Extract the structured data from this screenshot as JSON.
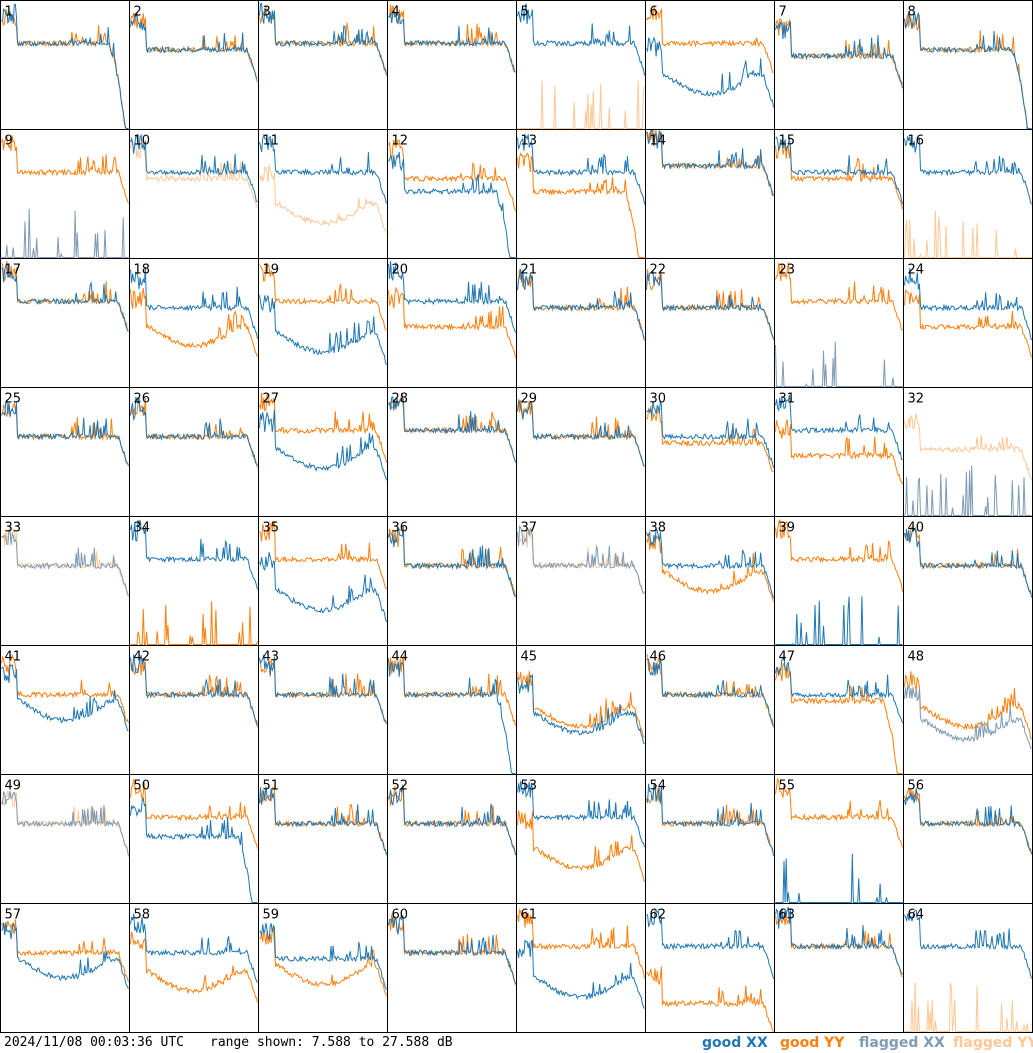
{
  "footer": {
    "timestamp": "2024/11/08 00:03:36 UTC",
    "range_text": "range shown: 7.588 to 27.588 dB"
  },
  "legend": {
    "good_xx": "good XX",
    "good_yy": "good YY",
    "flagged_xx": "flagged XX",
    "flagged_yy": "flagged YY"
  },
  "colors": {
    "good_xx": "#1f77b4",
    "good_yy": "#ff7f0e",
    "flagged_xx": "#7f9bb5",
    "flagged_yy": "#ffc896",
    "border": "#000000",
    "background": "#ffffff"
  },
  "chart_data": {
    "type": "line",
    "layout": "8x8 small multiples",
    "y_range_db": [
      7.588,
      27.588
    ],
    "panels": [
      {
        "label": "1",
        "xx": {
          "level": 21,
          "shape": "dip_right",
          "status": "good"
        },
        "yy": {
          "level": 21,
          "shape": "dip_right",
          "status": "good"
        }
      },
      {
        "label": "2",
        "xx": {
          "level": 20,
          "shape": "flat",
          "status": "good"
        },
        "yy": {
          "level": 20,
          "shape": "flat",
          "status": "good"
        }
      },
      {
        "label": "3",
        "xx": {
          "level": 21,
          "shape": "flat",
          "status": "good"
        },
        "yy": {
          "level": 21,
          "shape": "flat",
          "status": "good"
        }
      },
      {
        "label": "4",
        "xx": {
          "level": 21,
          "shape": "flat",
          "status": "good"
        },
        "yy": {
          "level": 21,
          "shape": "flat",
          "status": "good"
        }
      },
      {
        "label": "5",
        "xx": {
          "level": 21,
          "shape": "noisy_sag",
          "status": "good"
        },
        "yy": {
          "level": null,
          "shape": "spikes_low",
          "status": "flagged"
        }
      },
      {
        "label": "6",
        "xx": {
          "level": 16,
          "shape": "sag",
          "status": "good"
        },
        "yy": {
          "level": 21,
          "shape": "flat",
          "status": "good"
        }
      },
      {
        "label": "7",
        "xx": {
          "level": 19,
          "shape": "flat",
          "status": "good"
        },
        "yy": {
          "level": 19,
          "shape": "flat",
          "status": "good"
        }
      },
      {
        "label": "8",
        "xx": {
          "level": 20,
          "shape": "dip_right",
          "status": "good"
        },
        "yy": {
          "level": 20,
          "shape": "dip_right",
          "status": "good"
        }
      },
      {
        "label": "9",
        "xx": {
          "level": null,
          "shape": "spikes_low",
          "status": "flagged"
        },
        "yy": {
          "level": 21,
          "shape": "flat",
          "status": "good"
        }
      },
      {
        "label": "10",
        "xx": {
          "level": 21,
          "shape": "flat",
          "status": "good"
        },
        "yy": {
          "level": 20,
          "shape": "flat",
          "status": "flagged"
        }
      },
      {
        "label": "11",
        "xx": {
          "level": 21,
          "shape": "flat",
          "status": "good"
        },
        "yy": {
          "level": 16,
          "shape": "sag",
          "status": "flagged"
        }
      },
      {
        "label": "12",
        "xx": {
          "level": 18,
          "shape": "dip_right",
          "status": "good"
        },
        "yy": {
          "level": 20,
          "shape": "flat",
          "status": "good"
        }
      },
      {
        "label": "13",
        "xx": {
          "level": 21,
          "shape": "flat",
          "status": "good"
        },
        "yy": {
          "level": 18,
          "shape": "dip_right",
          "status": "good"
        }
      },
      {
        "label": "14",
        "xx": {
          "level": 22,
          "shape": "flat",
          "status": "good"
        },
        "yy": {
          "level": 22,
          "shape": "flat",
          "status": "good"
        }
      },
      {
        "label": "15",
        "xx": {
          "level": 21,
          "shape": "flat",
          "status": "good"
        },
        "yy": {
          "level": 20,
          "shape": "flat",
          "status": "good"
        }
      },
      {
        "label": "16",
        "xx": {
          "level": 21,
          "shape": "flat",
          "status": "good"
        },
        "yy": {
          "level": null,
          "shape": "spikes_low",
          "status": "flagged"
        }
      },
      {
        "label": "17",
        "xx": {
          "level": 21,
          "shape": "flat",
          "status": "good"
        },
        "yy": {
          "level": 21,
          "shape": "flat",
          "status": "good"
        }
      },
      {
        "label": "18",
        "xx": {
          "level": 20,
          "shape": "flat",
          "status": "good"
        },
        "yy": {
          "level": 17,
          "shape": "sag",
          "status": "good"
        }
      },
      {
        "label": "19",
        "xx": {
          "level": 16,
          "shape": "sag",
          "status": "good"
        },
        "yy": {
          "level": 21,
          "shape": "flat",
          "status": "good"
        }
      },
      {
        "label": "20",
        "xx": {
          "level": 21,
          "shape": "flat",
          "status": "good"
        },
        "yy": {
          "level": 17,
          "shape": "flat",
          "status": "good"
        }
      },
      {
        "label": "21",
        "xx": {
          "level": 20,
          "shape": "flat",
          "status": "good"
        },
        "yy": {
          "level": 20,
          "shape": "flat",
          "status": "good"
        }
      },
      {
        "label": "22",
        "xx": {
          "level": 20,
          "shape": "flat",
          "status": "good"
        },
        "yy": {
          "level": 20,
          "shape": "flat",
          "status": "good"
        }
      },
      {
        "label": "23",
        "xx": {
          "level": null,
          "shape": "spikes_low",
          "status": "flagged"
        },
        "yy": {
          "level": 21,
          "shape": "flat",
          "status": "good"
        }
      },
      {
        "label": "24",
        "xx": {
          "level": 20,
          "shape": "flat",
          "status": "good"
        },
        "yy": {
          "level": 17,
          "shape": "flat",
          "status": "good"
        }
      },
      {
        "label": "25",
        "xx": {
          "level": 20,
          "shape": "flat",
          "status": "good"
        },
        "yy": {
          "level": 20,
          "shape": "flat",
          "status": "good"
        }
      },
      {
        "label": "26",
        "xx": {
          "level": 20,
          "shape": "flat",
          "status": "good"
        },
        "yy": {
          "level": 20,
          "shape": "flat",
          "status": "good"
        }
      },
      {
        "label": "27",
        "xx": {
          "level": 18,
          "shape": "sag",
          "status": "good"
        },
        "yy": {
          "level": 21,
          "shape": "flat",
          "status": "good"
        }
      },
      {
        "label": "28",
        "xx": {
          "level": 21,
          "shape": "flat",
          "status": "good"
        },
        "yy": {
          "level": 21,
          "shape": "flat",
          "status": "good"
        }
      },
      {
        "label": "29",
        "xx": {
          "level": 20,
          "shape": "flat",
          "status": "good"
        },
        "yy": {
          "level": 20,
          "shape": "flat",
          "status": "good"
        }
      },
      {
        "label": "30",
        "xx": {
          "level": 20,
          "shape": "flat",
          "status": "good"
        },
        "yy": {
          "level": 19,
          "shape": "flat",
          "status": "good"
        }
      },
      {
        "label": "31",
        "xx": {
          "level": 21,
          "shape": "flat",
          "status": "good"
        },
        "yy": {
          "level": 17,
          "shape": "flat",
          "status": "good"
        }
      },
      {
        "label": "32",
        "xx": {
          "level": null,
          "shape": "spikes_low",
          "status": "flagged"
        },
        "yy": {
          "level": 18,
          "shape": "flat",
          "status": "flagged"
        }
      },
      {
        "label": "33",
        "xx": {
          "level": 20,
          "shape": "flat",
          "status": "flagged"
        },
        "yy": {
          "level": 20,
          "shape": "flat",
          "status": "flagged"
        }
      },
      {
        "label": "34",
        "xx": {
          "level": 21,
          "shape": "flat",
          "status": "good"
        },
        "yy": {
          "level": null,
          "shape": "spikes_low",
          "status": "good"
        }
      },
      {
        "label": "35",
        "xx": {
          "level": 16,
          "shape": "sag",
          "status": "good"
        },
        "yy": {
          "level": 21,
          "shape": "flat",
          "status": "good"
        }
      },
      {
        "label": "36",
        "xx": {
          "level": 20,
          "shape": "flat",
          "status": "good"
        },
        "yy": {
          "level": 20,
          "shape": "flat",
          "status": "good"
        }
      },
      {
        "label": "37",
        "xx": {
          "level": 20,
          "shape": "flat",
          "status": "flagged"
        },
        "yy": {
          "level": 20,
          "shape": "flat",
          "status": "flagged"
        }
      },
      {
        "label": "38",
        "xx": {
          "level": 20,
          "shape": "flat",
          "status": "good"
        },
        "yy": {
          "level": 19,
          "shape": "sag",
          "status": "good"
        }
      },
      {
        "label": "39",
        "xx": {
          "level": null,
          "shape": "spikes_low",
          "status": "good"
        },
        "yy": {
          "level": 21,
          "shape": "flat",
          "status": "good"
        }
      },
      {
        "label": "40",
        "xx": {
          "level": 20,
          "shape": "flat",
          "status": "good"
        },
        "yy": {
          "level": 20,
          "shape": "flat",
          "status": "good"
        }
      },
      {
        "label": "41",
        "xx": {
          "level": 19,
          "shape": "sag",
          "status": "good"
        },
        "yy": {
          "level": 20,
          "shape": "flat",
          "status": "good"
        }
      },
      {
        "label": "42",
        "xx": {
          "level": 20,
          "shape": "flat",
          "status": "good"
        },
        "yy": {
          "level": 20,
          "shape": "flat",
          "status": "good"
        }
      },
      {
        "label": "43",
        "xx": {
          "level": 20,
          "shape": "flat",
          "status": "good"
        },
        "yy": {
          "level": 20,
          "shape": "flat",
          "status": "good"
        }
      },
      {
        "label": "44",
        "xx": {
          "level": 20,
          "shape": "dip_right",
          "status": "good"
        },
        "yy": {
          "level": 20,
          "shape": "flat",
          "status": "good"
        }
      },
      {
        "label": "45",
        "xx": {
          "level": 17,
          "shape": "sag",
          "status": "good"
        },
        "yy": {
          "level": 18,
          "shape": "sag",
          "status": "good"
        }
      },
      {
        "label": "46",
        "xx": {
          "level": 20,
          "shape": "flat",
          "status": "good"
        },
        "yy": {
          "level": 20,
          "shape": "flat",
          "status": "good"
        }
      },
      {
        "label": "47",
        "xx": {
          "level": 20,
          "shape": "flat",
          "status": "good"
        },
        "yy": {
          "level": 19,
          "shape": "dip_right",
          "status": "good"
        }
      },
      {
        "label": "48",
        "xx": {
          "level": 16,
          "shape": "sag",
          "status": "flagged"
        },
        "yy": {
          "level": 18,
          "shape": "sag",
          "status": "good"
        }
      },
      {
        "label": "49",
        "xx": {
          "level": 20,
          "shape": "flat",
          "status": "flagged"
        },
        "yy": {
          "level": 20,
          "shape": "flat",
          "status": "flagged"
        }
      },
      {
        "label": "50",
        "xx": {
          "level": 18,
          "shape": "dip_right",
          "status": "good"
        },
        "yy": {
          "level": 21,
          "shape": "flat",
          "status": "good"
        }
      },
      {
        "label": "51",
        "xx": {
          "level": 20,
          "shape": "flat",
          "status": "good"
        },
        "yy": {
          "level": 20,
          "shape": "flat",
          "status": "good"
        }
      },
      {
        "label": "52",
        "xx": {
          "level": 20,
          "shape": "flat",
          "status": "good"
        },
        "yy": {
          "level": 20,
          "shape": "flat",
          "status": "good"
        }
      },
      {
        "label": "53",
        "xx": {
          "level": 21,
          "shape": "flat",
          "status": "good"
        },
        "yy": {
          "level": 16,
          "shape": "sag",
          "status": "good"
        }
      },
      {
        "label": "54",
        "xx": {
          "level": 20,
          "shape": "flat",
          "status": "good"
        },
        "yy": {
          "level": 20,
          "shape": "flat",
          "status": "good"
        }
      },
      {
        "label": "55",
        "xx": {
          "level": null,
          "shape": "spikes_low",
          "status": "good"
        },
        "yy": {
          "level": 21,
          "shape": "flat",
          "status": "good"
        }
      },
      {
        "label": "56",
        "xx": {
          "level": 20,
          "shape": "flat",
          "status": "good"
        },
        "yy": {
          "level": 20,
          "shape": "flat",
          "status": "good"
        }
      },
      {
        "label": "57",
        "xx": {
          "level": 19,
          "shape": "sag",
          "status": "good"
        },
        "yy": {
          "level": 20,
          "shape": "flat",
          "status": "good"
        }
      },
      {
        "label": "58",
        "xx": {
          "level": 20,
          "shape": "flat",
          "status": "good"
        },
        "yy": {
          "level": 17,
          "shape": "sag",
          "status": "good"
        }
      },
      {
        "label": "59",
        "xx": {
          "level": 19,
          "shape": "flat",
          "status": "good"
        },
        "yy": {
          "level": 18,
          "shape": "sag",
          "status": "good"
        }
      },
      {
        "label": "60",
        "xx": {
          "level": 20,
          "shape": "flat",
          "status": "good"
        },
        "yy": {
          "level": 20,
          "shape": "flat",
          "status": "good"
        }
      },
      {
        "label": "61",
        "xx": {
          "level": 16,
          "shape": "sag",
          "status": "good"
        },
        "yy": {
          "level": 21,
          "shape": "flat",
          "status": "good"
        }
      },
      {
        "label": "62",
        "xx": {
          "level": 21,
          "shape": "flat",
          "status": "good"
        },
        "yy": {
          "level": 12,
          "shape": "low",
          "status": "good"
        }
      },
      {
        "label": "63",
        "xx": {
          "level": 21,
          "shape": "flat",
          "status": "good"
        },
        "yy": {
          "level": 21,
          "shape": "flat",
          "status": "good"
        }
      },
      {
        "label": "64",
        "xx": {
          "level": 21,
          "shape": "flat",
          "status": "good"
        },
        "yy": {
          "level": null,
          "shape": "spikes_low",
          "status": "flagged"
        }
      }
    ]
  }
}
